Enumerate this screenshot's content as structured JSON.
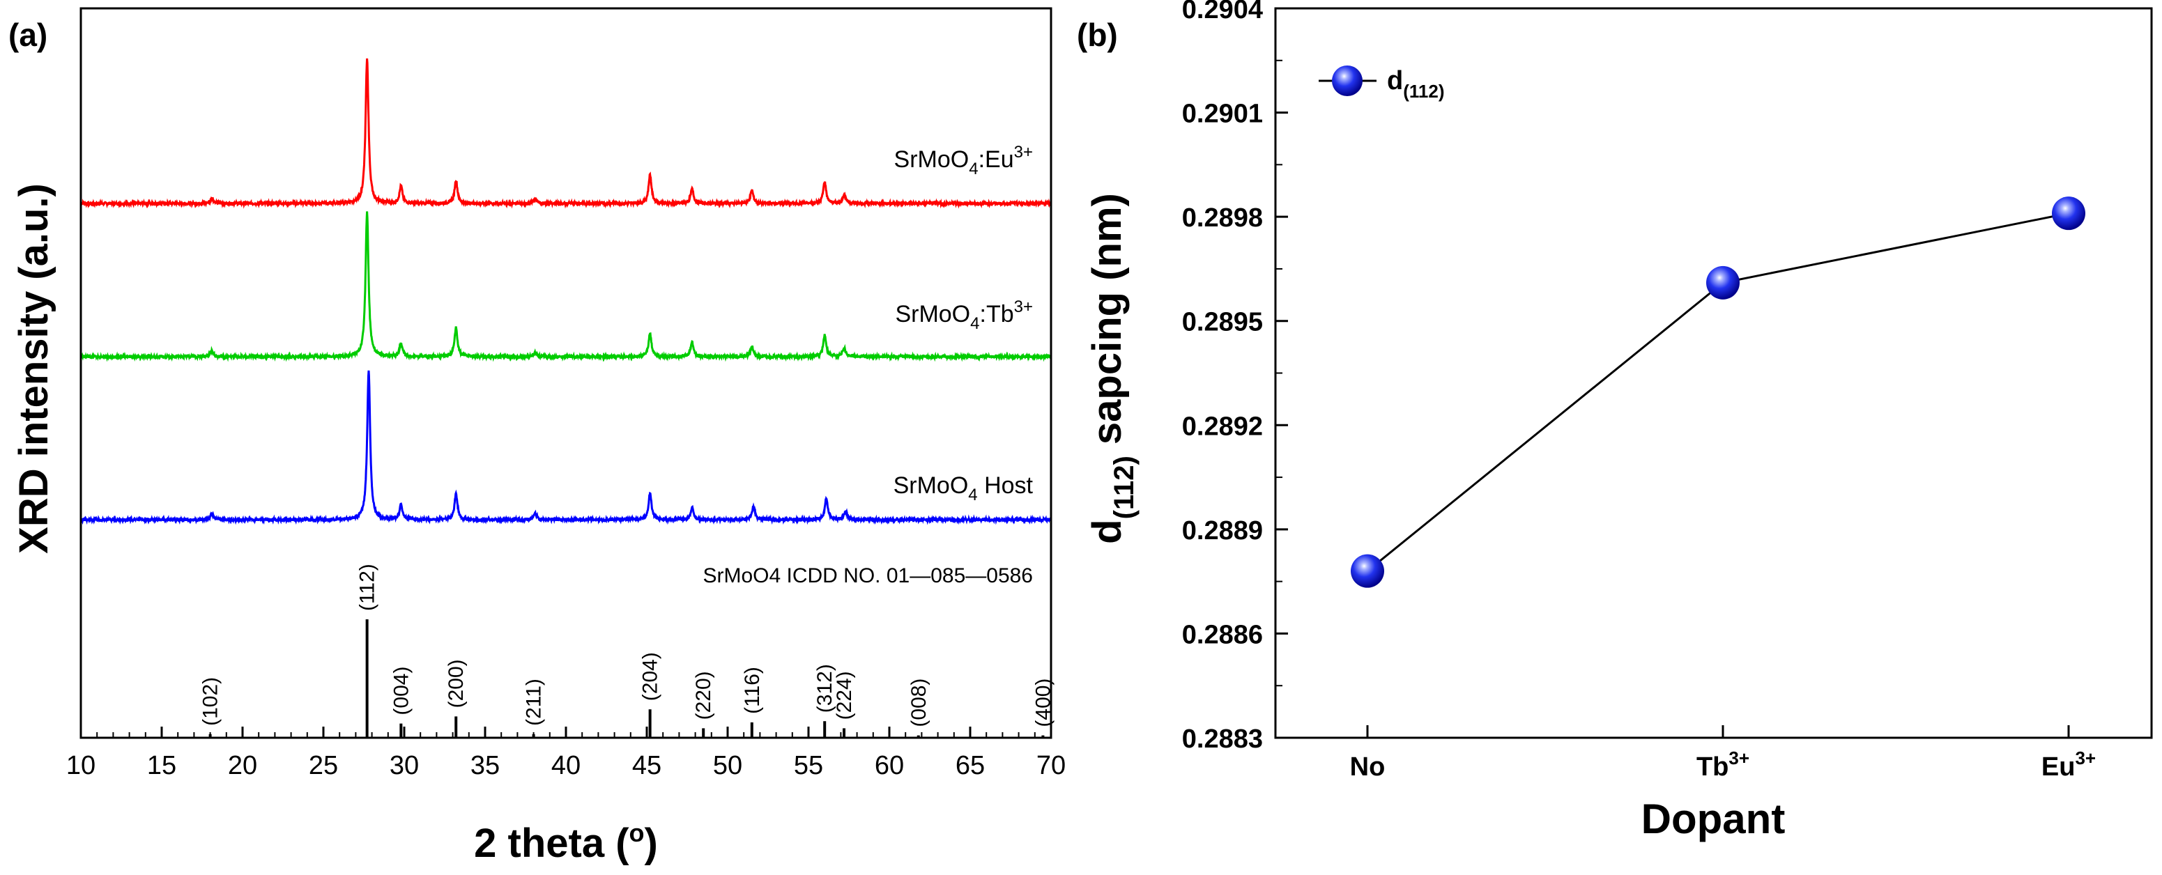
{
  "chart_data": [
    {
      "type": "line",
      "panel_label": "(a)",
      "xlabel_main": "2 theta (",
      "xlabel_sup": "o",
      "xlabel_end": ")",
      "ylabel": "XRD intensity (a.u.)",
      "xlim": [
        10,
        70
      ],
      "xticks": [
        10,
        15,
        20,
        25,
        30,
        35,
        40,
        45,
        50,
        55,
        60,
        65,
        70
      ],
      "series": [
        {
          "name": "SrMoO4:Eu3+",
          "label_parts": [
            "SrMoO",
            "4",
            ":Eu",
            "3+"
          ],
          "color": "#ff0000",
          "peaks": [
            [
              18.1,
              0.04
            ],
            [
              27.7,
              1.0
            ],
            [
              29.8,
              0.12
            ],
            [
              33.2,
              0.16
            ],
            [
              38.1,
              0.03
            ],
            [
              45.2,
              0.2
            ],
            [
              47.8,
              0.1
            ],
            [
              51.5,
              0.09
            ],
            [
              56.0,
              0.15
            ],
            [
              57.2,
              0.06
            ]
          ]
        },
        {
          "name": "SrMoO4:Tb3+",
          "label_parts": [
            "SrMoO",
            "4",
            ":Tb",
            "3+"
          ],
          "color": "#00cc00",
          "peaks": [
            [
              18.1,
              0.04
            ],
            [
              27.7,
              1.0
            ],
            [
              29.8,
              0.09
            ],
            [
              33.2,
              0.2
            ],
            [
              38.1,
              0.03
            ],
            [
              45.2,
              0.16
            ],
            [
              47.8,
              0.1
            ],
            [
              51.5,
              0.07
            ],
            [
              56.0,
              0.15
            ],
            [
              57.2,
              0.06
            ]
          ]
        },
        {
          "name": "SrMoO4 Host",
          "label_parts": [
            "SrMoO",
            "4",
            " Host",
            ""
          ],
          "color": "#0000ff",
          "peaks": [
            [
              18.1,
              0.04
            ],
            [
              27.8,
              1.0
            ],
            [
              29.8,
              0.1
            ],
            [
              33.2,
              0.17
            ],
            [
              38.1,
              0.04
            ],
            [
              45.2,
              0.18
            ],
            [
              47.8,
              0.08
            ],
            [
              51.6,
              0.09
            ],
            [
              56.1,
              0.14
            ],
            [
              57.3,
              0.06
            ]
          ]
        }
      ],
      "reference": {
        "title": "SrMoO4 ICDD NO. 01—085—0586",
        "lines": [
          {
            "x": 18.0,
            "h": 0.03,
            "label": "(102)"
          },
          {
            "x": 27.7,
            "h": 1.0,
            "label": "(112)"
          },
          {
            "x": 29.8,
            "h": 0.12,
            "label": "(004)"
          },
          {
            "x": 33.2,
            "h": 0.18,
            "label": "(200)"
          },
          {
            "x": 38.0,
            "h": 0.03,
            "label": "(211)"
          },
          {
            "x": 45.2,
            "h": 0.24,
            "label": "(204)"
          },
          {
            "x": 48.5,
            "h": 0.08,
            "label": "(220)"
          },
          {
            "x": 51.5,
            "h": 0.13,
            "label": "(116)"
          },
          {
            "x": 56.0,
            "h": 0.14,
            "label": "(312)"
          },
          {
            "x": 57.2,
            "h": 0.08,
            "label": "(224)"
          },
          {
            "x": 61.8,
            "h": 0.02,
            "label": "(008)"
          },
          {
            "x": 69.5,
            "h": 0.02,
            "label": "(400)"
          }
        ]
      }
    },
    {
      "type": "line",
      "panel_label": "(b)",
      "xlabel": "Dopant",
      "ylabel_main": "d",
      "ylabel_sub": "(112)",
      "ylabel_end": " sapcing (nm)",
      "categories": [
        {
          "base": "No",
          "sup": ""
        },
        {
          "base": "Tb",
          "sup": "3+"
        },
        {
          "base": "Eu",
          "sup": "3+"
        }
      ],
      "ylim": [
        0.2883,
        0.2904
      ],
      "yticks": [
        "0.2883",
        "0.2886",
        "0.2889",
        "0.2892",
        "0.2895",
        "0.2898",
        "0.2901",
        "0.2904"
      ],
      "series": [
        {
          "name": "d(112)",
          "legend_main": "d",
          "legend_sub": "(112)",
          "values": [
            0.28878,
            0.28961,
            0.28981
          ]
        }
      ]
    }
  ]
}
